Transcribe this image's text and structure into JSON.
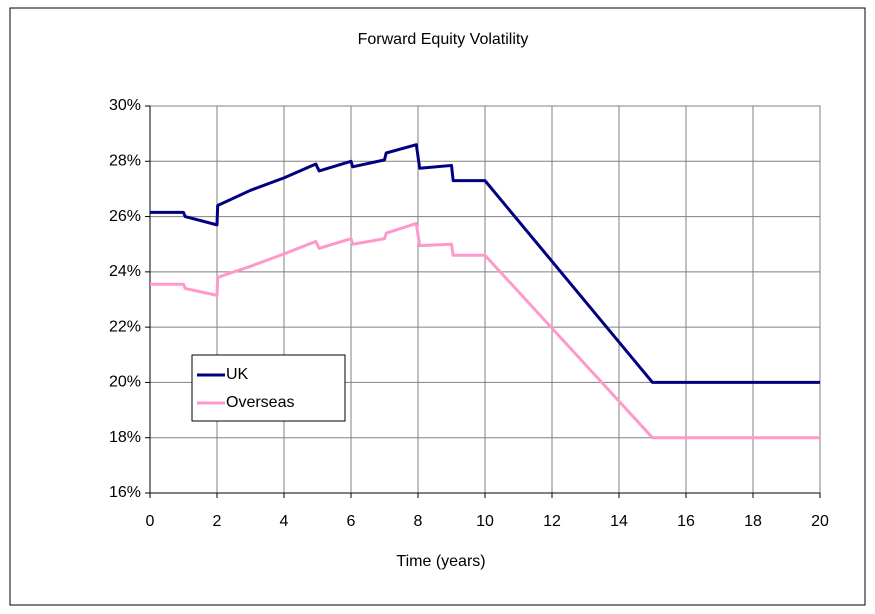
{
  "chart_data": {
    "type": "line",
    "title": "Forward Equity Volatility",
    "xlabel": "Time (years)",
    "x": [
      0,
      1,
      1.05,
      2,
      2.02,
      3,
      4,
      4.95,
      5.05,
      6,
      6.05,
      7,
      7.05,
      7.95,
      8.05,
      9,
      9.05,
      10,
      15,
      20
    ],
    "series": [
      {
        "name": "UK",
        "color": "#000080",
        "values": [
          26.15,
          26.15,
          26.0,
          25.7,
          26.4,
          26.95,
          27.4,
          27.9,
          27.65,
          28.0,
          27.8,
          28.05,
          28.3,
          28.6,
          27.75,
          27.85,
          27.3,
          27.3,
          20.0,
          20.0
        ]
      },
      {
        "name": "Overseas",
        "color": "#ff99cc",
        "values": [
          23.55,
          23.55,
          23.4,
          23.15,
          23.8,
          24.2,
          24.65,
          25.1,
          24.85,
          25.2,
          25.0,
          25.2,
          25.4,
          25.75,
          24.95,
          25.0,
          24.6,
          24.6,
          18.0,
          18.0
        ]
      }
    ],
    "xlim": [
      0,
      20
    ],
    "xticks": [
      0,
      2,
      4,
      6,
      8,
      10,
      12,
      14,
      16,
      18,
      20
    ],
    "ylim": [
      16,
      30
    ],
    "yticks": [
      {
        "value": 16,
        "label": "16%"
      },
      {
        "value": 18,
        "label": "18%"
      },
      {
        "value": 20,
        "label": "20%"
      },
      {
        "value": 22,
        "label": "22%"
      },
      {
        "value": 24,
        "label": "24%"
      },
      {
        "value": 26,
        "label": "26%"
      },
      {
        "value": 28,
        "label": "28%"
      },
      {
        "value": 30,
        "label": "30%"
      }
    ],
    "grid": true,
    "legend": "center left"
  }
}
